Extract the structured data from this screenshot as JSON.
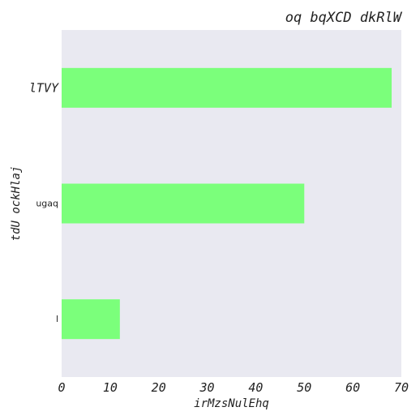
{
  "chart_data": {
    "type": "bar",
    "orientation": "horizontal",
    "title": "oq bqXCD dkRlW",
    "xlabel": "irMzsNulEhq",
    "ylabel": "tdU ockHlaj",
    "categories": [
      "lTVY",
      "ugaq",
      "l"
    ],
    "values": [
      68,
      50,
      12
    ],
    "xlim": [
      0,
      70
    ],
    "xticks": [
      0,
      10,
      20,
      30,
      40,
      50,
      60,
      70
    ],
    "grid": false,
    "colors": {
      "bar": "#7bff7b",
      "plot_background": "#e9e9f1"
    }
  }
}
